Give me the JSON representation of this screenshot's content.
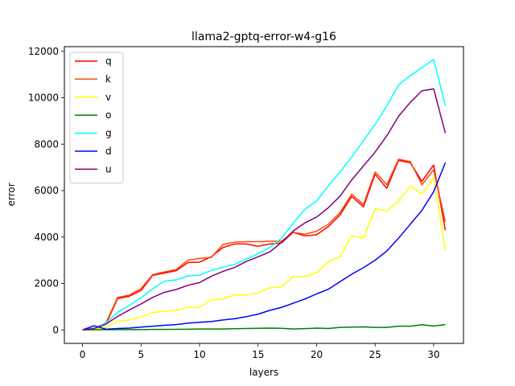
{
  "chart_data": {
    "type": "line",
    "title": "llama2-gptq-error-w4-g16",
    "xlabel": "layers",
    "ylabel": "error",
    "xlim": [
      -1.55,
      32.55
    ],
    "ylim": [
      -580,
      12200
    ],
    "xticks": [
      0,
      5,
      10,
      15,
      20,
      25,
      30
    ],
    "yticks": [
      0,
      2000,
      4000,
      6000,
      8000,
      10000,
      12000
    ],
    "legend_position": "top-left",
    "grid": false,
    "x": [
      0,
      1,
      2,
      3,
      4,
      5,
      6,
      7,
      8,
      9,
      10,
      11,
      12,
      13,
      14,
      15,
      16,
      17,
      18,
      19,
      20,
      21,
      22,
      23,
      24,
      25,
      26,
      27,
      28,
      29,
      30,
      31
    ],
    "series": [
      {
        "name": "q",
        "color": "#ff0000",
        "values": [
          0,
          60,
          250,
          1350,
          1450,
          1700,
          2350,
          2450,
          2550,
          2900,
          2920,
          3150,
          3550,
          3700,
          3700,
          3600,
          3700,
          3750,
          4200,
          4050,
          4100,
          4450,
          4950,
          5750,
          5300,
          6700,
          6100,
          7300,
          7200,
          6400,
          7100,
          4300
        ]
      },
      {
        "name": "k",
        "color": "#ff4500",
        "values": [
          0,
          70,
          300,
          1400,
          1500,
          1780,
          2380,
          2500,
          2600,
          3000,
          3080,
          3120,
          3680,
          3780,
          3800,
          3800,
          3820,
          3820,
          4200,
          4120,
          4250,
          4550,
          5050,
          5850,
          5400,
          6800,
          6250,
          7350,
          7250,
          6250,
          6900,
          4650
        ]
      },
      {
        "name": "v",
        "color": "#ffff00",
        "values": [
          0,
          40,
          100,
          380,
          430,
          560,
          750,
          800,
          850,
          970,
          980,
          1300,
          1320,
          1520,
          1500,
          1600,
          1820,
          1850,
          2300,
          2300,
          2460,
          2950,
          3150,
          4050,
          3950,
          5220,
          5120,
          5550,
          6200,
          5850,
          6550,
          3450
        ]
      },
      {
        "name": "o",
        "color": "#008000",
        "values": [
          0,
          5,
          10,
          15,
          15,
          15,
          20,
          22,
          25,
          30,
          40,
          40,
          40,
          50,
          60,
          70,
          80,
          70,
          40,
          55,
          80,
          60,
          110,
          120,
          130,
          110,
          110,
          160,
          160,
          220,
          170,
          230
        ]
      },
      {
        "name": "g",
        "color": "#00ffff",
        "values": [
          0,
          80,
          300,
          760,
          1060,
          1380,
          1780,
          2100,
          2150,
          2320,
          2360,
          2560,
          2700,
          2820,
          3050,
          3280,
          3550,
          3950,
          4600,
          5200,
          5550,
          6200,
          6800,
          7450,
          8150,
          8850,
          9650,
          10550,
          10950,
          11300,
          11650,
          9650
        ]
      },
      {
        "name": "d",
        "color": "#0000ff",
        "values": [
          0,
          180,
          30,
          60,
          80,
          120,
          160,
          200,
          230,
          290,
          330,
          360,
          430,
          480,
          570,
          680,
          840,
          970,
          1150,
          1330,
          1550,
          1750,
          2080,
          2400,
          2680,
          3000,
          3400,
          3950,
          4550,
          5150,
          5950,
          7200
        ]
      },
      {
        "name": "u",
        "color": "#800080",
        "values": [
          0,
          60,
          250,
          580,
          860,
          1120,
          1400,
          1620,
          1740,
          1920,
          2040,
          2310,
          2520,
          2690,
          2950,
          3150,
          3360,
          3770,
          4260,
          4610,
          4860,
          5260,
          5760,
          6460,
          7060,
          7660,
          8360,
          9200,
          9800,
          10300,
          10380,
          8480
        ]
      }
    ]
  }
}
